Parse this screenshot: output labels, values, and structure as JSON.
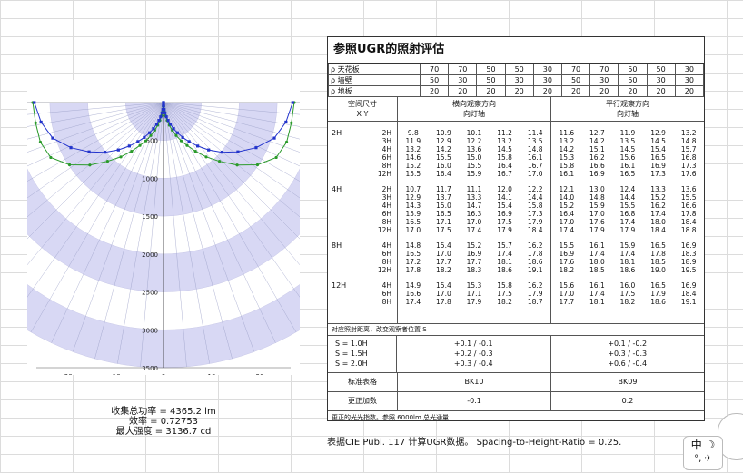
{
  "polar": {
    "radial_ticks": [
      "500",
      "1000",
      "1500",
      "2000",
      "2500",
      "3000",
      "3500"
    ],
    "x_ticks": [
      "-20",
      "-10",
      "0",
      "10",
      "20"
    ],
    "max": 3500,
    "green_curve": [
      [
        0,
        0
      ],
      [
        5,
        50
      ],
      [
        10,
        110
      ],
      [
        15,
        180
      ],
      [
        20,
        250
      ],
      [
        25,
        330
      ],
      [
        30,
        420
      ],
      [
        35,
        530
      ],
      [
        40,
        660
      ],
      [
        45,
        800
      ],
      [
        50,
        1000
      ],
      [
        55,
        1250
      ],
      [
        60,
        1550
      ],
      [
        65,
        1950
      ],
      [
        70,
        2400
      ],
      [
        75,
        2800
      ],
      [
        80,
        3000
      ],
      [
        85,
        3080
      ],
      [
        90,
        3137
      ]
    ],
    "blue_curve": [
      [
        0,
        0
      ],
      [
        5,
        40
      ],
      [
        10,
        90
      ],
      [
        15,
        140
      ],
      [
        20,
        200
      ],
      [
        25,
        260
      ],
      [
        30,
        330
      ],
      [
        35,
        420
      ],
      [
        40,
        520
      ],
      [
        45,
        650
      ],
      [
        50,
        800
      ],
      [
        55,
        1000
      ],
      [
        60,
        1250
      ],
      [
        65,
        1550
      ],
      [
        70,
        1900
      ],
      [
        75,
        2300
      ],
      [
        80,
        2700
      ],
      [
        85,
        2950
      ],
      [
        90,
        3100
      ]
    ]
  },
  "stats": {
    "flux": "收集总功率 = 4365.2 lm",
    "efficiency": "效率 = 0.72753",
    "max_intensity": "最大强度 = 3136.7 cd"
  },
  "ugr": {
    "title": "参照UGR的照射评估",
    "rho_rows": [
      {
        "label": "ρ 天花板",
        "values": [
          "70",
          "70",
          "50",
          "50",
          "30",
          "70",
          "70",
          "50",
          "50",
          "30"
        ]
      },
      {
        "label": "ρ 墙壁",
        "values": [
          "50",
          "30",
          "50",
          "30",
          "30",
          "50",
          "30",
          "50",
          "30",
          "30"
        ]
      },
      {
        "label": "ρ 地板",
        "values": [
          "20",
          "20",
          "20",
          "20",
          "20",
          "20",
          "20",
          "20",
          "20",
          "20"
        ]
      }
    ],
    "head_room": "空间尺寸",
    "head_xy": "X      Y",
    "head_cross": "横向观察方向",
    "head_cross_sub": "向灯轴",
    "head_along": "平行观察方向",
    "head_along_sub": "向灯轴",
    "groups": [
      {
        "x": "2H",
        "rows": [
          {
            "y": "2H",
            "a": [
              "9.8",
              "10.9",
              "10.1",
              "11.2",
              "11.4"
            ],
            "b": [
              "11.6",
              "12.7",
              "11.9",
              "12.9",
              "13.2"
            ]
          },
          {
            "y": "3H",
            "a": [
              "11.9",
              "12.9",
              "12.2",
              "13.2",
              "13.5"
            ],
            "b": [
              "13.2",
              "14.2",
              "13.5",
              "14.5",
              "14.8"
            ]
          },
          {
            "y": "4H",
            "a": [
              "13.2",
              "14.2",
              "13.6",
              "14.5",
              "14.8"
            ],
            "b": [
              "14.2",
              "15.1",
              "14.5",
              "15.4",
              "15.7"
            ]
          },
          {
            "y": "6H",
            "a": [
              "14.6",
              "15.5",
              "15.0",
              "15.8",
              "16.1"
            ],
            "b": [
              "15.3",
              "16.2",
              "15.6",
              "16.5",
              "16.8"
            ]
          },
          {
            "y": "8H",
            "a": [
              "15.2",
              "16.0",
              "15.5",
              "16.4",
              "16.7"
            ],
            "b": [
              "15.8",
              "16.6",
              "16.1",
              "16.9",
              "17.3"
            ]
          },
          {
            "y": "12H",
            "a": [
              "15.5",
              "16.4",
              "15.9",
              "16.7",
              "17.0"
            ],
            "b": [
              "16.1",
              "16.9",
              "16.5",
              "17.3",
              "17.6"
            ]
          }
        ]
      },
      {
        "x": "4H",
        "rows": [
          {
            "y": "2H",
            "a": [
              "10.7",
              "11.7",
              "11.1",
              "12.0",
              "12.2"
            ],
            "b": [
              "12.1",
              "13.0",
              "12.4",
              "13.3",
              "13.6"
            ]
          },
          {
            "y": "3H",
            "a": [
              "12.9",
              "13.7",
              "13.3",
              "14.1",
              "14.4"
            ],
            "b": [
              "14.0",
              "14.8",
              "14.4",
              "15.2",
              "15.5"
            ]
          },
          {
            "y": "4H",
            "a": [
              "14.3",
              "15.0",
              "14.7",
              "15.4",
              "15.8"
            ],
            "b": [
              "15.2",
              "15.9",
              "15.5",
              "16.2",
              "16.6"
            ]
          },
          {
            "y": "6H",
            "a": [
              "15.9",
              "16.5",
              "16.3",
              "16.9",
              "17.3"
            ],
            "b": [
              "16.4",
              "17.0",
              "16.8",
              "17.4",
              "17.8"
            ]
          },
          {
            "y": "8H",
            "a": [
              "16.5",
              "17.1",
              "17.0",
              "17.5",
              "17.9"
            ],
            "b": [
              "17.0",
              "17.6",
              "17.4",
              "18.0",
              "18.4"
            ]
          },
          {
            "y": "12H",
            "a": [
              "17.0",
              "17.5",
              "17.4",
              "17.9",
              "18.4"
            ],
            "b": [
              "17.4",
              "17.9",
              "17.9",
              "18.4",
              "18.8"
            ]
          }
        ]
      },
      {
        "x": "8H",
        "rows": [
          {
            "y": "4H",
            "a": [
              "14.8",
              "15.4",
              "15.2",
              "15.7",
              "16.2"
            ],
            "b": [
              "15.5",
              "16.1",
              "15.9",
              "16.5",
              "16.9"
            ]
          },
          {
            "y": "6H",
            "a": [
              "16.5",
              "17.0",
              "16.9",
              "17.4",
              "17.8"
            ],
            "b": [
              "16.9",
              "17.4",
              "17.4",
              "17.8",
              "18.3"
            ]
          },
          {
            "y": "8H",
            "a": [
              "17.2",
              "17.7",
              "17.7",
              "18.1",
              "18.6"
            ],
            "b": [
              "17.6",
              "18.0",
              "18.1",
              "18.5",
              "18.9"
            ]
          },
          {
            "y": "12H",
            "a": [
              "17.8",
              "18.2",
              "18.3",
              "18.6",
              "19.1"
            ],
            "b": [
              "18.2",
              "18.5",
              "18.6",
              "19.0",
              "19.5"
            ]
          }
        ]
      },
      {
        "x": "12H",
        "rows": [
          {
            "y": "4H",
            "a": [
              "14.9",
              "15.4",
              "15.3",
              "15.8",
              "16.2"
            ],
            "b": [
              "15.6",
              "16.1",
              "16.0",
              "16.5",
              "16.9"
            ]
          },
          {
            "y": "6H",
            "a": [
              "16.6",
              "17.0",
              "17.1",
              "17.5",
              "17.9"
            ],
            "b": [
              "17.0",
              "17.4",
              "17.5",
              "17.9",
              "18.4"
            ]
          },
          {
            "y": "8H",
            "a": [
              "17.4",
              "17.8",
              "17.9",
              "18.2",
              "18.7"
            ],
            "b": [
              "17.7",
              "18.1",
              "18.2",
              "18.6",
              "19.1"
            ]
          }
        ]
      }
    ],
    "note": "对应照射距离，改变观察者位置 S",
    "s_labels": [
      "S = 1.0H",
      "S = 1.5H",
      "S = 2.0H"
    ],
    "s_cross": [
      "+0.1   /   -0.1",
      "+0.2   /   -0.3",
      "+0.3   /   -0.4"
    ],
    "s_along": [
      "+0.1   /   -0.2",
      "+0.3   /   -0.3",
      "+0.6   /   -0.4"
    ],
    "std_label": "标准表格",
    "std_cross": "BK10",
    "std_along": "BK09",
    "corr_label": "更正加数",
    "corr_cross": "-0.1",
    "corr_along": "0.2",
    "footnote": "更正的光光指数。参照 6000lm 总光通量"
  },
  "caption": "表据CIE Publ. 117 计算UGR数据。    Spacing-to-Height-Ratio = 0.25.",
  "ime": {
    "top": "中 ☽",
    "bottom": "°, ✈"
  }
}
